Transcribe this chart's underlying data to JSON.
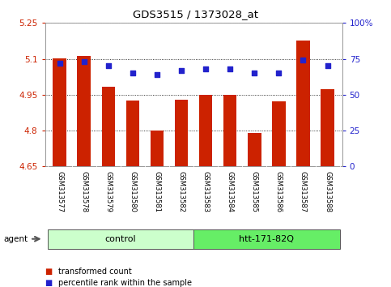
{
  "title": "GDS3515 / 1373028_at",
  "samples": [
    "GSM313577",
    "GSM313578",
    "GSM313579",
    "GSM313580",
    "GSM313581",
    "GSM313582",
    "GSM313583",
    "GSM313584",
    "GSM313585",
    "GSM313586",
    "GSM313587",
    "GSM313588"
  ],
  "bar_values": [
    5.103,
    5.112,
    4.983,
    4.924,
    4.8,
    4.93,
    4.948,
    4.95,
    4.79,
    4.922,
    5.175,
    4.974
  ],
  "dot_values_pct": [
    72,
    73,
    70,
    65,
    64,
    67,
    68,
    68,
    65,
    65,
    74,
    70
  ],
  "ylim_left": [
    4.65,
    5.25
  ],
  "ylim_right": [
    0,
    100
  ],
  "yticks_left": [
    4.65,
    4.8,
    4.95,
    5.1,
    5.25
  ],
  "yticks_right": [
    0,
    25,
    50,
    75,
    100
  ],
  "ytick_labels_left": [
    "4.65",
    "4.8",
    "4.95",
    "5.1",
    "5.25"
  ],
  "ytick_labels_right": [
    "0",
    "25",
    "50",
    "75",
    "100%"
  ],
  "bar_color": "#CC2200",
  "dot_color": "#2222CC",
  "bg_plot": "#FFFFFF",
  "bg_xtick": "#BBBBBB",
  "group1_label": "control",
  "group2_label": "htt-171-82Q",
  "group1_color": "#CCFFCC",
  "group2_color": "#66EE66",
  "group1_indices": [
    0,
    1,
    2,
    3,
    4,
    5
  ],
  "group2_indices": [
    6,
    7,
    8,
    9,
    10,
    11
  ],
  "agent_label": "agent",
  "legend_bar_label": "transformed count",
  "legend_dot_label": "percentile rank within the sample",
  "bar_bottom": 4.65
}
